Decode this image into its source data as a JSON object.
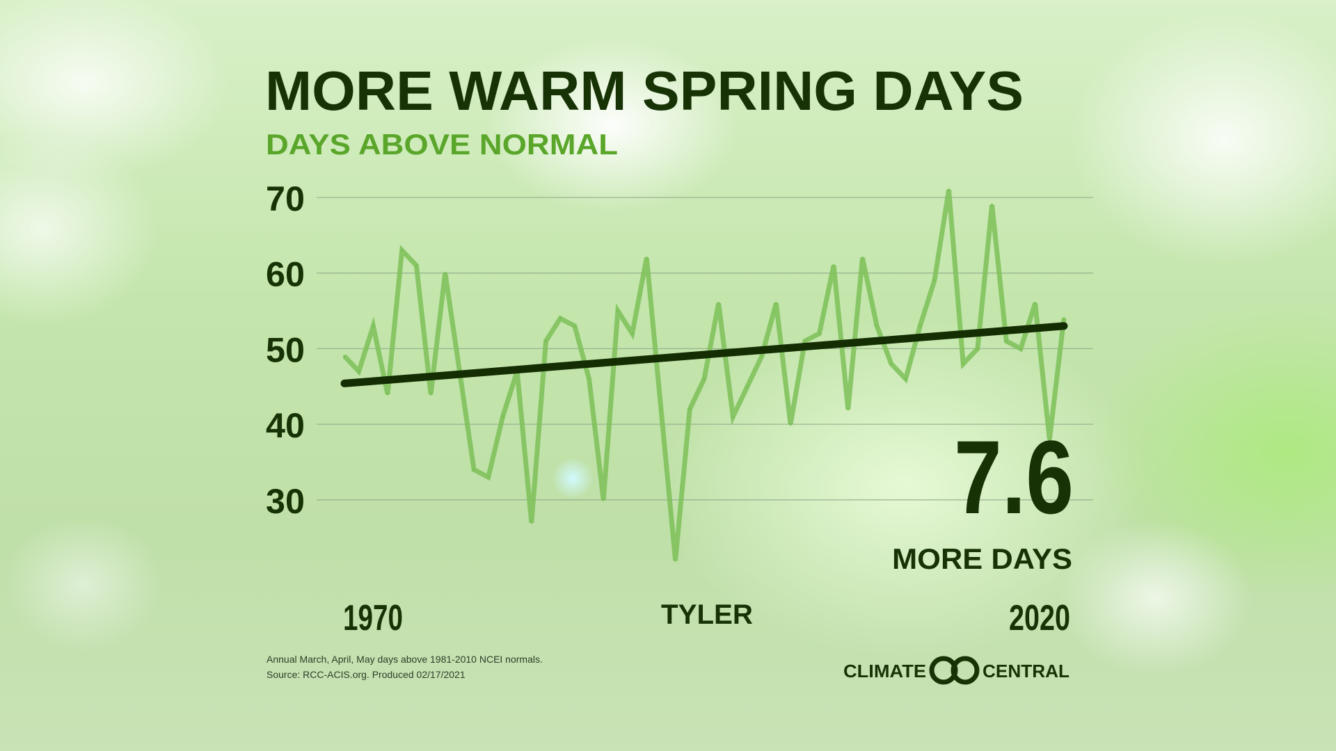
{
  "header": {
    "title": "MORE WARM SPRING DAYS",
    "subtitle": "DAYS ABOVE NORMAL"
  },
  "colors": {
    "title": "#173306",
    "subtitle": "#5aa62a",
    "data_line": "#7dbf58",
    "trend_line": "#142d03",
    "grid": "#8fa88a"
  },
  "chart_data": {
    "type": "line",
    "title": "MORE WARM SPRING DAYS",
    "subtitle": "DAYS ABOVE NORMAL",
    "location": "TYLER",
    "x_tick_labels": [
      "1970",
      "2020"
    ],
    "y_ticks": [
      70,
      60,
      50,
      40,
      30
    ],
    "ylim": [
      20,
      72
    ],
    "xlim": [
      1970,
      2020
    ],
    "grid": true,
    "x": [
      1970,
      1971,
      1972,
      1973,
      1974,
      1975,
      1976,
      1977,
      1978,
      1979,
      1980,
      1981,
      1982,
      1983,
      1984,
      1985,
      1986,
      1987,
      1988,
      1989,
      1990,
      1991,
      1992,
      1993,
      1994,
      1995,
      1996,
      1997,
      1998,
      1999,
      2000,
      2001,
      2002,
      2003,
      2004,
      2005,
      2006,
      2007,
      2008,
      2009,
      2010,
      2011,
      2012,
      2013,
      2014,
      2015,
      2016,
      2017,
      2018,
      2019,
      2020
    ],
    "series": [
      {
        "values": [
          49,
          47,
          53,
          44,
          63,
          61,
          44,
          60,
          47,
          34,
          33,
          41,
          47,
          27,
          51,
          54,
          53,
          46,
          30,
          55,
          52,
          62,
          42,
          22,
          42,
          46,
          56,
          41,
          45,
          49,
          56,
          40,
          51,
          52,
          61,
          42,
          62,
          53,
          48,
          46,
          53,
          59,
          71,
          48,
          50,
          69,
          51,
          50,
          56,
          38,
          54
        ]
      }
    ],
    "trend": {
      "start": [
        1970,
        45.4
      ],
      "end": [
        2020,
        53.0
      ]
    },
    "annotation": {
      "value": "7.6",
      "label": "MORE DAYS"
    }
  },
  "footnote": {
    "line1": "Annual March, April, May days above 1981-2010 NCEI normals.",
    "line2": "Source: RCC-ACIS.org. Produced 02/17/2021"
  },
  "logo": {
    "left": "CLIMATE",
    "right": "CENTRAL"
  }
}
